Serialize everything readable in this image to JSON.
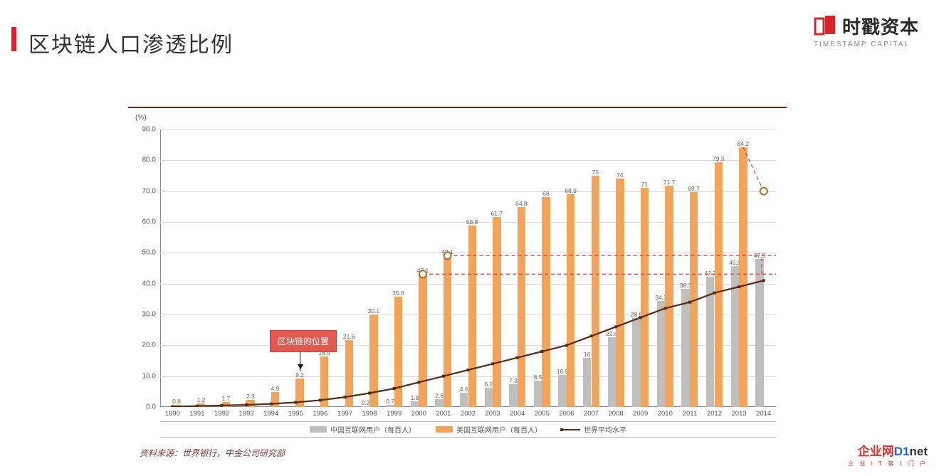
{
  "header": {
    "title": "区块链人口渗透比例"
  },
  "logo": {
    "cn": "时戳资本",
    "en": "TIMESTAMP CAPITAL",
    "color": "#d7242a"
  },
  "chart": {
    "type": "bar+line",
    "y_label": "(%)",
    "ylim": [
      0,
      90
    ],
    "ytick_step": 10,
    "years": [
      1990,
      1991,
      1992,
      1993,
      1994,
      1995,
      1996,
      1997,
      1998,
      1999,
      2000,
      2001,
      2002,
      2003,
      2004,
      2005,
      2006,
      2007,
      2008,
      2009,
      2010,
      2011,
      2012,
      2013,
      2014
    ],
    "series": {
      "china": {
        "label": "中国互联网用户（每百人）",
        "color": "#bfbfbf",
        "values": [
          null,
          null,
          null,
          null,
          null,
          null,
          null,
          null,
          0.2,
          0.7,
          1.8,
          2.6,
          4.6,
          6.2,
          7.3,
          8.5,
          10.5,
          16.0,
          22.6,
          28.9,
          34.3,
          38.3,
          42.3,
          45.8,
          47.9
        ]
      },
      "us": {
        "label": "美国互联网用户（每百人）",
        "color": "#f2a45a",
        "values": [
          0.8,
          1.2,
          1.7,
          2.3,
          4.9,
          9.2,
          16.4,
          21.6,
          30.1,
          35.8,
          43.1,
          49.1,
          58.8,
          61.7,
          64.8,
          68.0,
          68.9,
          75.0,
          74.0,
          71.0,
          71.7,
          69.7,
          79.3,
          84.2,
          null
        ]
      },
      "world": {
        "label": "世界平均水平",
        "color": "#5a2b14",
        "values": [
          0.1,
          0.3,
          0.5,
          0.7,
          1.0,
          1.5,
          2.2,
          3.2,
          4.5,
          6.0,
          8.0,
          10.0,
          12.0,
          14.0,
          16.0,
          18.0,
          20.0,
          23.0,
          26.0,
          29.0,
          32.0,
          34.0,
          37.0,
          39.0,
          41.0
        ]
      }
    },
    "bar_group_width": 0.66,
    "highlight_markers": [
      {
        "year": 2000,
        "value": 43.1
      },
      {
        "year": 2001,
        "value": 49.1
      }
    ],
    "final_marker": {
      "year": 2014,
      "value": 70
    },
    "marker_color": "#f2a45a",
    "marker_border": "#b76b1e",
    "dash_color": "#e33a3a",
    "grid_color": "#d9d9d9",
    "font_size_ticks": 10,
    "font_size_labels": 8.5
  },
  "annotation": {
    "text": "区块链的位置",
    "at_year": 1995
  },
  "legend": {
    "items": [
      "china",
      "us",
      "world"
    ]
  },
  "source": {
    "text": "资料来源：世界银行，中金公司研究部"
  },
  "d1": {
    "main_parts": [
      {
        "t": "企业网",
        "c": "r"
      },
      {
        "t": "D1",
        "c": "b"
      },
      {
        "t": "net",
        "c": "k"
      }
    ],
    "sub": "企 业 I T 第 1 门 户"
  }
}
